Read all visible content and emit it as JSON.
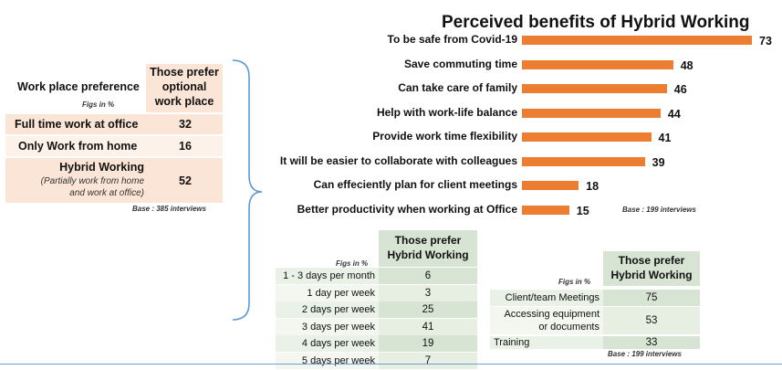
{
  "left_table": {
    "header_label": "Work place preference",
    "header_col": [
      "Those prefer",
      "optional",
      "work place"
    ],
    "figs_note": "Figs in %",
    "rows": [
      {
        "label": "Full time work at office",
        "value": "32"
      },
      {
        "label": "Only Work from home",
        "value": "16"
      },
      {
        "label": "Hybrid Working",
        "sublabel_1": "(Partially work from home",
        "sublabel_2": "and work at office)",
        "value": "52"
      }
    ],
    "base_note": "Base : 385 interviews"
  },
  "chart_data": {
    "type": "bar",
    "orientation": "horizontal",
    "title": "Perceived benefits of Hybrid Working",
    "categories": [
      "To be safe from Covid-19",
      "Save commuting time",
      "Can take care of family",
      "Help with work-life balance",
      "Provide work time flexibility",
      "It will be easier to collaborate with colleagues",
      "Can effeciently plan for client meetings",
      "Better productivity when working at Office"
    ],
    "values": [
      73,
      48,
      46,
      44,
      41,
      39,
      18,
      15
    ],
    "xlabel": "",
    "ylabel": "",
    "xlim": [
      0,
      73
    ],
    "grid": false,
    "bar_color": "#ed7d31",
    "base_note": "Base : 199 interviews"
  },
  "days_table": {
    "header": [
      "Those prefer",
      "Hybrid Working"
    ],
    "figs_note": "Figs in %",
    "rows": [
      {
        "label": "1 - 3 days per month",
        "value": "6"
      },
      {
        "label": "1 day per week",
        "value": "3"
      },
      {
        "label": "2 days per week",
        "value": "25"
      },
      {
        "label": "3 days per week",
        "value": "41"
      },
      {
        "label": "4 days per week",
        "value": "19"
      },
      {
        "label": "5 days per week",
        "value": "7"
      }
    ]
  },
  "purpose_table": {
    "header": [
      "Those prefer",
      "Hybrid Working"
    ],
    "figs_note": "Figs in %",
    "rows": [
      {
        "label": "Client/team Meetings",
        "value": "75"
      },
      {
        "label_1": "Accessing equipment",
        "label_2": "or documents",
        "value": "53"
      },
      {
        "label": "Training",
        "value": "33"
      }
    ],
    "base_note": "Base : 199 interviews"
  },
  "colors": {
    "accent_orange": "#ed7d31",
    "peach": "#fbe5d6",
    "peach_light": "#fdf2ea",
    "green": "#d8e4d3",
    "green_light": "#eaf1e6",
    "brace_blue": "#5b9bd5"
  }
}
